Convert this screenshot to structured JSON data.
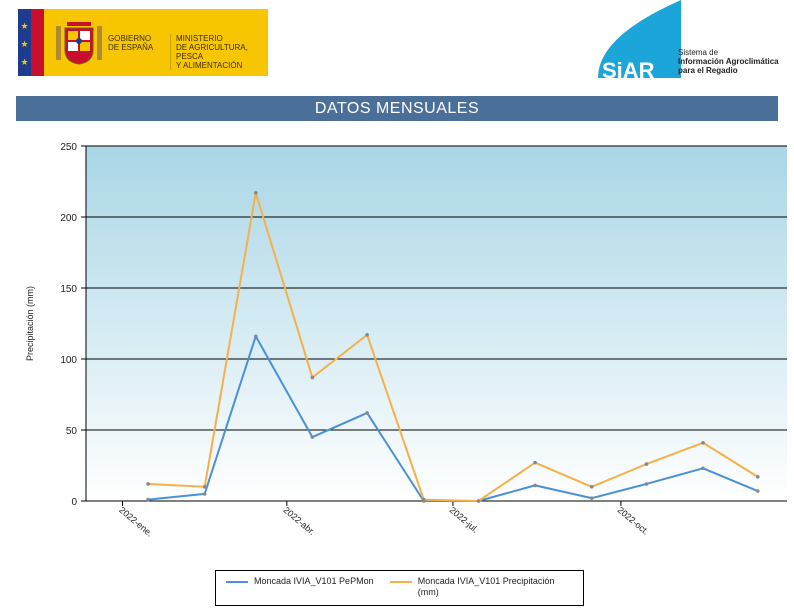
{
  "header": {
    "gov_name": "GOBIERNO\nDE ESPAÑA",
    "ministry": "MINISTERIO\nDE AGRICULTURA, PESCA\nY ALIMENTACIÓN",
    "siar_logo": "SiAR",
    "siar_line1": "Sistema de",
    "siar_line2": "Información Agroclimática",
    "siar_line3": "para el Regadio"
  },
  "banner_title": "DATOS MENSUALES",
  "colors": {
    "banner": "#4a6f99",
    "series1": "#4a90d9",
    "series2": "#f5b04a",
    "plot_top": "#a9d6e6",
    "plot_bottom": "#ffffff"
  },
  "chart_data": {
    "type": "line",
    "ylabel": "Precipitación (mm)",
    "xlabel": "",
    "ylim": [
      0,
      250
    ],
    "yticks": [
      0,
      50,
      100,
      150,
      200,
      250
    ],
    "xlim": [
      "2021-12-12",
      "2022-12-31"
    ],
    "x": [
      "2022-01-15",
      "2022-02-15",
      "2022-03-15",
      "2022-04-15",
      "2022-05-15",
      "2022-06-15",
      "2022-07-15",
      "2022-08-15",
      "2022-09-15",
      "2022-10-15",
      "2022-11-15",
      "2022-12-15"
    ],
    "xtick_dates": [
      "2022-01-01",
      "2022-04-01",
      "2022-07-01",
      "2022-10-01"
    ],
    "xtick_labels": [
      "2022-ene.",
      "2022-abr.",
      "2022-jul.",
      "2022-oct."
    ],
    "grid": true,
    "legend_position": "bottom",
    "series": [
      {
        "name": "Moncada IVIA_V101 PePMon",
        "values": [
          1,
          5,
          116,
          45,
          62,
          0,
          0,
          11,
          2,
          12,
          23,
          7
        ]
      },
      {
        "name": "Moncada IVIA_V101 Precipitación (mm)",
        "values": [
          12,
          10,
          217,
          87,
          117,
          1,
          0,
          27,
          10,
          26,
          41,
          17
        ]
      }
    ]
  }
}
